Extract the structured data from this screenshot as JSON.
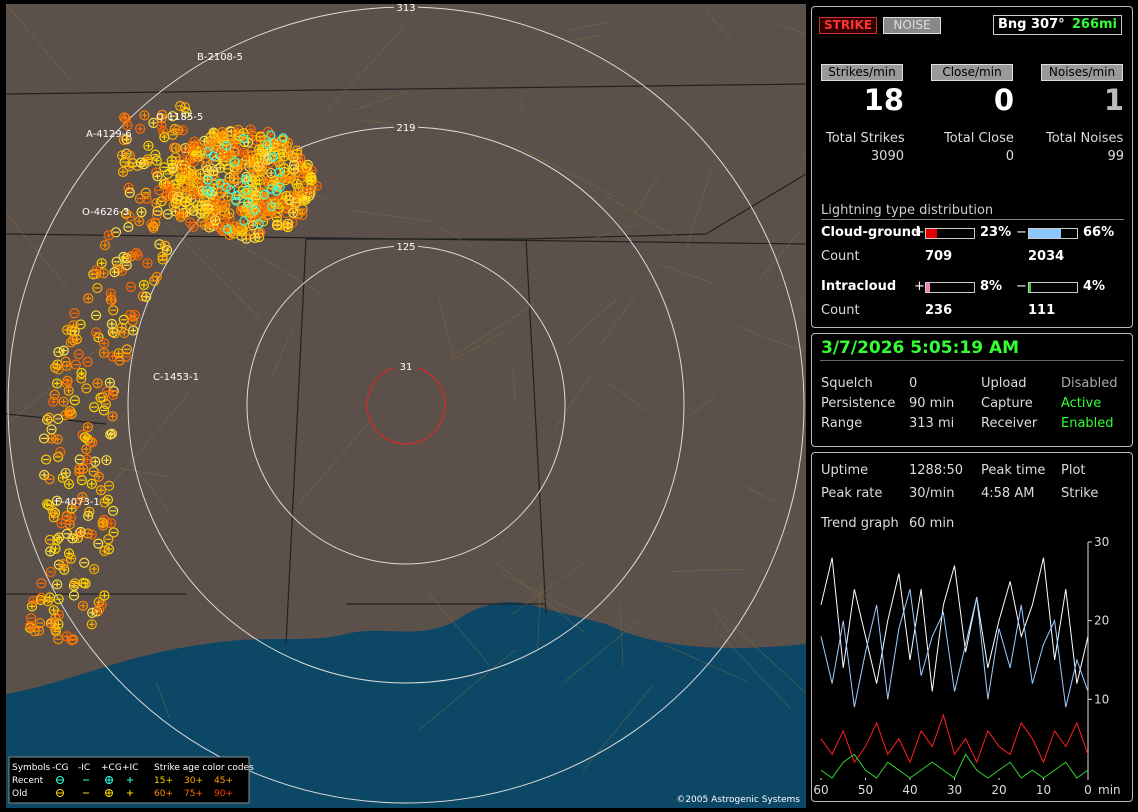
{
  "map": {
    "ring_labels": [
      "313",
      "219",
      "125",
      "31"
    ],
    "cell_labels": [
      "B-2108-5",
      "Q-1185-5",
      "A-4129-6",
      "O-4626-3",
      "C-1453-1",
      "F-4073-1"
    ],
    "legend": {
      "header": [
        "Symbols",
        "-CG",
        "-IC",
        "+CG",
        "+IC",
        "Strike age color codes"
      ],
      "rows": [
        {
          "label": "Recent",
          "ages": [
            "15+",
            "30+",
            "45+"
          ]
        },
        {
          "label": "Old",
          "ages": [
            "60+",
            "75+",
            "90+"
          ]
        }
      ]
    },
    "copyright": "©2005 Astrogenic Systems"
  },
  "status": {
    "buttons": [
      "STRIKE",
      "NOISE"
    ],
    "bearing": "Bng 307°",
    "distance": "266mi",
    "rate_headers": [
      "Strikes/min",
      "Close/min",
      "Noises/min"
    ],
    "rates": [
      "18",
      "0",
      "1"
    ],
    "total_labels": [
      "Total Strikes",
      "Total Close",
      "Total Noises"
    ],
    "totals": [
      "3090",
      "0",
      "99"
    ],
    "distribution": {
      "title": "Lightning type distribution",
      "count_label": "Count",
      "rows": [
        {
          "name": "Cloud-ground",
          "plus": {
            "value": 23,
            "label": "23%"
          },
          "minus": {
            "value": 66,
            "label": "66%"
          },
          "counts": [
            "709",
            "2034"
          ]
        },
        {
          "name": "Intracloud",
          "plus": {
            "value": 8,
            "label": "8%"
          },
          "minus": {
            "value": 4,
            "label": "4%"
          },
          "counts": [
            "236",
            "111"
          ]
        }
      ],
      "signs": [
        "+",
        "−"
      ]
    }
  },
  "settings": {
    "datetime": "3/7/2026 5:05:19 AM",
    "rows": [
      [
        "Squelch",
        "0",
        "Upload",
        "Disabled"
      ],
      [
        "Persistence",
        "90 min",
        "Capture",
        "Active"
      ],
      [
        "Range",
        "313 mi",
        "Receiver",
        "Enabled"
      ]
    ]
  },
  "stats": {
    "rows": [
      [
        "Uptime",
        "1288:50",
        "Peak time",
        "Plot"
      ],
      [
        "Peak rate",
        "30/min",
        "4:58 AM",
        "Strike"
      ],
      [
        "Trend graph",
        "60 min"
      ]
    ],
    "trend": {
      "xlim": [
        60,
        0
      ],
      "ylim": [
        0,
        30
      ],
      "yticks": [
        10,
        20,
        30
      ],
      "xticks": [
        60,
        50,
        40,
        30,
        20,
        10,
        0
      ],
      "x_unit": "min",
      "x": [
        60,
        57.5,
        55,
        52.5,
        50,
        47.5,
        45,
        42.5,
        40,
        37.5,
        35,
        32.5,
        30,
        27.5,
        25,
        22.5,
        20,
        17.5,
        15,
        12.5,
        10,
        7.5,
        5,
        2.5,
        0
      ],
      "series": [
        {
          "color": "#ffffff",
          "values": [
            22,
            28,
            14,
            24,
            18,
            12,
            20,
            26,
            15,
            24,
            11,
            22,
            27,
            16,
            23,
            14,
            20,
            25,
            18,
            22,
            28,
            15,
            24,
            12,
            18
          ]
        },
        {
          "color": "#9ccfff",
          "values": [
            18,
            12,
            20,
            9,
            16,
            22,
            10,
            19,
            24,
            13,
            18,
            21,
            11,
            17,
            23,
            10,
            19,
            14,
            22,
            12,
            17,
            20,
            9,
            15,
            11
          ]
        },
        {
          "color": "#ff2020",
          "values": [
            5,
            3,
            6,
            2,
            4,
            7,
            3,
            5,
            2,
            6,
            4,
            8,
            3,
            5,
            2,
            6,
            4,
            3,
            7,
            5,
            2,
            6,
            4,
            7,
            3
          ]
        },
        {
          "color": "#30d030",
          "values": [
            1,
            0,
            2,
            3,
            1,
            0,
            2,
            1,
            0,
            1,
            2,
            1,
            0,
            3,
            1,
            0,
            1,
            2,
            0,
            1,
            0,
            1,
            2,
            0,
            1
          ]
        }
      ]
    }
  }
}
